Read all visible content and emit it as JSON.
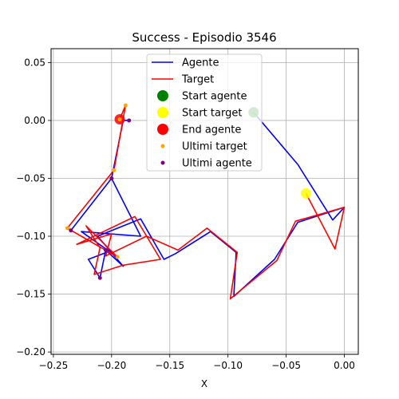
{
  "chart_data": {
    "type": "line",
    "title": "Success - Episodio 3546",
    "xlabel": "X",
    "ylabel": "",
    "xlim": [
      -0.252,
      0.012
    ],
    "ylim": [
      -0.202,
      0.062
    ],
    "xticks": [
      -0.25,
      -0.2,
      -0.15,
      -0.1,
      -0.05,
      0.0
    ],
    "xtick_labels": [
      "−0.25",
      "−0.20",
      "−0.15",
      "−0.10",
      "−0.05",
      "0.00"
    ],
    "yticks": [
      -0.2,
      -0.15,
      -0.1,
      -0.05,
      0.0,
      0.05
    ],
    "ytick_labels": [
      "−0.20",
      "−0.15",
      "−0.10",
      "−0.05",
      "0.00",
      "0.05"
    ],
    "grid": true,
    "legend_position": "top-center",
    "series": [
      {
        "name": "Agente",
        "kind": "line",
        "color": "#0000ff",
        "points": [
          [
            -0.078,
            0.007
          ],
          [
            -0.04,
            -0.038
          ],
          [
            -0.01,
            -0.086
          ],
          [
            0.0,
            -0.075
          ],
          [
            -0.04,
            -0.088
          ],
          [
            -0.06,
            -0.12
          ],
          [
            -0.095,
            -0.152
          ],
          [
            -0.093,
            -0.114
          ],
          [
            -0.115,
            -0.096
          ],
          [
            -0.145,
            -0.115
          ],
          [
            -0.155,
            -0.12
          ],
          [
            -0.175,
            -0.085
          ],
          [
            -0.212,
            -0.1
          ],
          [
            -0.19,
            -0.126
          ],
          [
            -0.205,
            -0.112
          ],
          [
            -0.21,
            -0.136
          ],
          [
            -0.22,
            -0.12
          ],
          [
            -0.202,
            -0.113
          ],
          [
            -0.226,
            -0.096
          ],
          [
            -0.175,
            -0.1
          ],
          [
            -0.2,
            -0.05
          ],
          [
            -0.235,
            -0.095
          ],
          [
            -0.2,
            -0.05
          ],
          [
            -0.19,
            0.0
          ],
          [
            -0.185,
            0.0
          ]
        ]
      },
      {
        "name": "Target",
        "kind": "line",
        "color": "#ff0000",
        "points": [
          [
            -0.033,
            -0.063
          ],
          [
            -0.008,
            -0.111
          ],
          [
            0.0,
            -0.075
          ],
          [
            -0.042,
            -0.087
          ],
          [
            -0.058,
            -0.121
          ],
          [
            -0.098,
            -0.154
          ],
          [
            -0.092,
            -0.114
          ],
          [
            -0.118,
            -0.093
          ],
          [
            -0.143,
            -0.112
          ],
          [
            -0.17,
            -0.1
          ],
          [
            -0.205,
            -0.117
          ],
          [
            -0.2,
            -0.098
          ],
          [
            -0.23,
            -0.107
          ],
          [
            -0.18,
            -0.083
          ],
          [
            -0.158,
            -0.12
          ],
          [
            -0.19,
            -0.125
          ],
          [
            -0.215,
            -0.133
          ],
          [
            -0.21,
            -0.11
          ],
          [
            -0.222,
            -0.091
          ],
          [
            -0.195,
            -0.118
          ],
          [
            -0.238,
            -0.093
          ],
          [
            -0.198,
            -0.043
          ],
          [
            -0.188,
            0.013
          ],
          [
            -0.193,
            0.001
          ]
        ]
      },
      {
        "name": "Start agente",
        "kind": "point",
        "color": "#008000",
        "points": [
          [
            -0.078,
            0.007
          ]
        ]
      },
      {
        "name": "Start target",
        "kind": "point",
        "color": "#ffff00",
        "points": [
          [
            -0.033,
            -0.063
          ]
        ]
      },
      {
        "name": "End agente",
        "kind": "point",
        "color": "#ff0000",
        "points": [
          [
            -0.193,
            0.001
          ]
        ]
      },
      {
        "name": "Ultimi target",
        "kind": "scatter",
        "color": "#ffa500",
        "points": [
          [
            -0.188,
            0.013
          ],
          [
            -0.198,
            -0.043
          ],
          [
            -0.238,
            -0.093
          ],
          [
            -0.195,
            -0.118
          ],
          [
            -0.193,
            0.001
          ]
        ]
      },
      {
        "name": "Ultimi agente",
        "kind": "scatter",
        "color": "#800080",
        "points": [
          [
            -0.185,
            0.0
          ],
          [
            -0.2,
            -0.05
          ],
          [
            -0.235,
            -0.095
          ],
          [
            -0.21,
            -0.136
          ],
          [
            -0.205,
            -0.112
          ]
        ]
      }
    ]
  }
}
